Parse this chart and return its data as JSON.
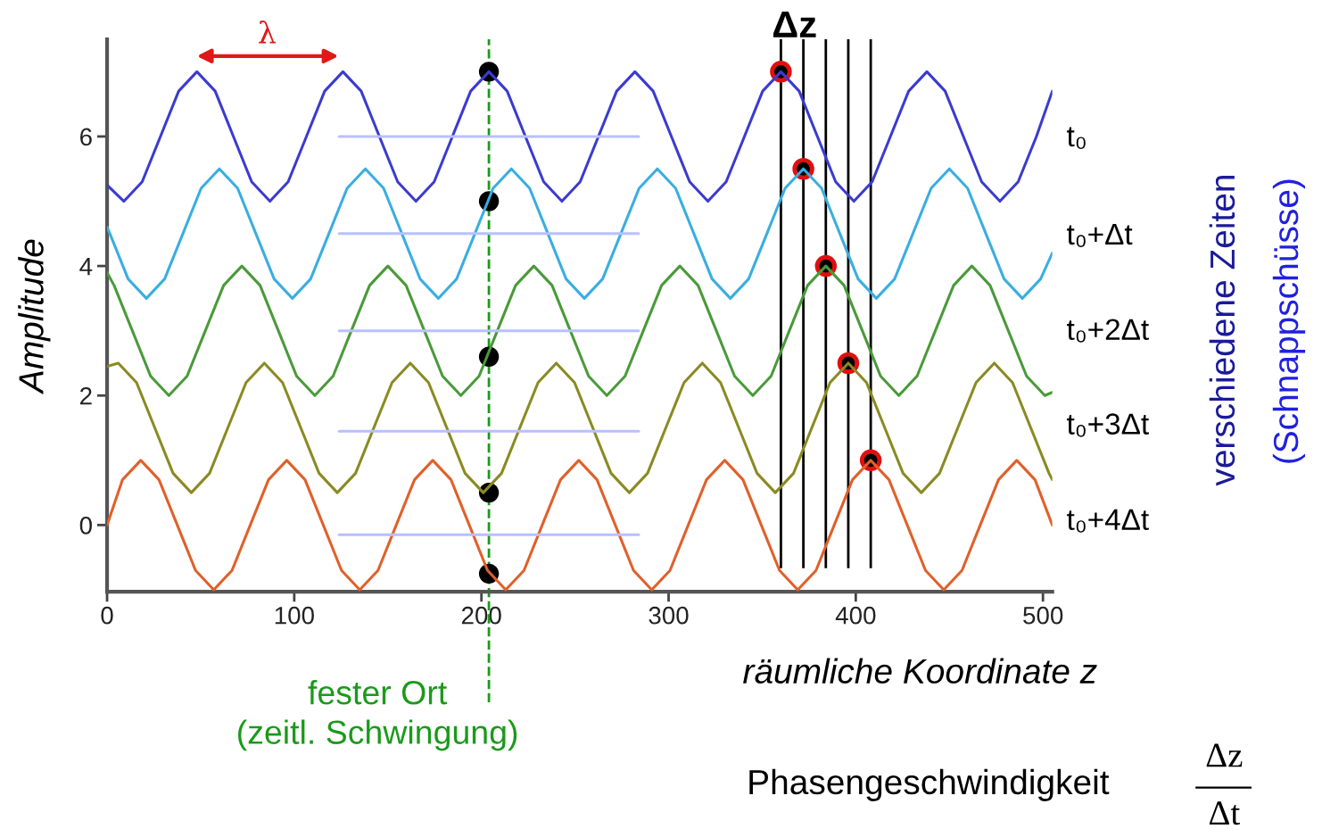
{
  "chart_data": {
    "type": "line",
    "xlabel": "räumliche Koordinate z",
    "ylabel": "Amplitude",
    "xlim": [
      0,
      505
    ],
    "ylim": [
      -1.03,
      7.5
    ],
    "xticks": [
      0,
      100,
      200,
      300,
      400,
      500
    ],
    "yticks": [
      0,
      2,
      4,
      6
    ],
    "grid": false,
    "marker": "none",
    "line_style": "solid",
    "series": [
      {
        "name": "t₀",
        "color": "#3b3bd0",
        "x": [
          0,
          9,
          18.75,
          28.5,
          38.25,
          48,
          57.75,
          67.5,
          77.25,
          87,
          96.75,
          106.5,
          116.25,
          126,
          135.75,
          145.5,
          155.25,
          165,
          174.75,
          184.5,
          194.25,
          204,
          213.75,
          223.5,
          233.25,
          243,
          252.75,
          262.5,
          272.25,
          282,
          291.75,
          301.5,
          311.25,
          321,
          330.75,
          340.5,
          350.25,
          360,
          369.75,
          379.5,
          389.25,
          399,
          408.75,
          418.5,
          428.25,
          438,
          447.75,
          457.5,
          467.25,
          477,
          486.75,
          496.5,
          505
        ],
        "values": [
          5.25,
          5,
          5.3,
          6,
          6.7,
          7,
          6.7,
          6,
          5.3,
          5,
          5.3,
          6,
          6.7,
          7,
          6.7,
          6,
          5.3,
          5,
          5.3,
          6,
          6.7,
          7,
          6.7,
          6,
          5.3,
          5,
          5.3,
          6,
          6.7,
          7,
          6.7,
          6,
          5.3,
          5,
          5.3,
          6,
          6.7,
          7,
          6.7,
          6,
          5.3,
          5,
          5.3,
          6,
          6.7,
          7,
          6.7,
          6,
          5.3,
          5,
          5.3,
          6,
          6.7
        ]
      },
      {
        "name": "t₀+Δt",
        "color": "#39aee0",
        "x": [
          0,
          1.5,
          11.25,
          21,
          30.75,
          40.5,
          50.25,
          60,
          69.75,
          79.5,
          89.25,
          99,
          108.75,
          118.5,
          128.25,
          138,
          147.75,
          157.5,
          167.25,
          177,
          186.75,
          196.5,
          206.25,
          216,
          225.75,
          235.5,
          245.25,
          255,
          264.75,
          274.5,
          284.25,
          294,
          303.75,
          313.5,
          323.25,
          333,
          342.75,
          352.5,
          362.25,
          372,
          381.75,
          391.5,
          401.25,
          411,
          420.75,
          430.5,
          440.25,
          450,
          459.75,
          469.5,
          479.25,
          489,
          498.75,
          505
        ],
        "values": [
          4.6,
          4.5,
          3.8,
          3.5,
          3.8,
          4.5,
          5.2,
          5.5,
          5.2,
          4.5,
          3.8,
          3.5,
          3.8,
          4.5,
          5.2,
          5.5,
          5.2,
          4.5,
          3.8,
          3.5,
          3.8,
          4.5,
          5.2,
          5.5,
          5.2,
          4.5,
          3.8,
          3.5,
          3.8,
          4.5,
          5.2,
          5.5,
          5.2,
          4.5,
          3.8,
          3.5,
          3.8,
          4.5,
          5.2,
          5.5,
          5.2,
          4.5,
          3.8,
          3.5,
          3.8,
          4.5,
          5.2,
          5.5,
          5.2,
          4.5,
          3.8,
          3.5,
          3.8,
          4.2
        ]
      },
      {
        "name": "t₀+2Δt",
        "color": "#4a9a3a",
        "x": [
          0,
          3.75,
          13.5,
          23.25,
          33,
          42.75,
          52.5,
          62.25,
          72,
          81.75,
          91.5,
          101.25,
          111,
          120.75,
          130.5,
          140.25,
          150,
          159.75,
          169.5,
          179.25,
          189,
          198.75,
          208.5,
          218.25,
          228,
          237.75,
          247.5,
          257.25,
          267,
          276.75,
          286.5,
          296.25,
          306,
          315.75,
          325.5,
          335.25,
          345,
          354.75,
          364.5,
          374.25,
          384,
          393.75,
          403.5,
          413.25,
          423,
          432.75,
          442.5,
          452.25,
          462,
          471.75,
          481.5,
          491.25,
          501,
          505
        ],
        "values": [
          3.9,
          3.7,
          3,
          2.3,
          2,
          2.3,
          3,
          3.7,
          4,
          3.7,
          3,
          2.3,
          2,
          2.3,
          3,
          3.7,
          4,
          3.7,
          3,
          2.3,
          2,
          2.3,
          3,
          3.7,
          4,
          3.7,
          3,
          2.3,
          2,
          2.3,
          3,
          3.7,
          4,
          3.7,
          3,
          2.3,
          2,
          2.3,
          3,
          3.7,
          4,
          3.7,
          3,
          2.3,
          2,
          2.3,
          3,
          3.7,
          4,
          3.7,
          3,
          2.3,
          2,
          2.05
        ]
      },
      {
        "name": "t₀+3Δt",
        "color": "#8a8a22",
        "x": [
          0,
          6,
          15.75,
          25.5,
          35.25,
          45,
          54.75,
          64.5,
          74.25,
          84,
          93.75,
          103.5,
          113.25,
          123,
          132.75,
          142.5,
          152.25,
          162,
          171.75,
          181.5,
          191.25,
          201,
          210.75,
          220.5,
          230.25,
          240,
          249.75,
          259.5,
          269.25,
          279,
          288.75,
          298.5,
          308.25,
          318,
          327.75,
          337.5,
          347.25,
          357,
          366.75,
          376.5,
          386.25,
          396,
          405.75,
          415.5,
          425.25,
          435,
          444.75,
          454.5,
          464.25,
          474,
          483.75,
          493.5,
          503.25,
          505
        ],
        "values": [
          2.45,
          2.5,
          2.2,
          1.5,
          0.8,
          0.5,
          0.8,
          1.5,
          2.2,
          2.5,
          2.2,
          1.5,
          0.8,
          0.5,
          0.8,
          1.5,
          2.2,
          2.5,
          2.2,
          1.5,
          0.8,
          0.5,
          0.8,
          1.5,
          2.2,
          2.5,
          2.2,
          1.5,
          0.8,
          0.5,
          0.8,
          1.5,
          2.2,
          2.5,
          2.2,
          1.5,
          0.8,
          0.5,
          0.8,
          1.5,
          2.2,
          2.5,
          2.2,
          1.5,
          0.8,
          0.5,
          0.8,
          1.5,
          2.2,
          2.5,
          2.2,
          1.5,
          0.8,
          0.7
        ]
      },
      {
        "name": "t₀+4Δt",
        "color": "#e0602a",
        "x": [
          0,
          8.25,
          18,
          27.75,
          37.5,
          47.25,
          57,
          66.75,
          76.5,
          86.25,
          96,
          105.75,
          115.5,
          125.25,
          135,
          144.75,
          154.5,
          164.25,
          174,
          183.75,
          193.5,
          203.25,
          213,
          222.75,
          232.5,
          242.25,
          252,
          261.75,
          271.5,
          281.25,
          291,
          300.75,
          310.5,
          320.25,
          330,
          339.75,
          349.5,
          359.25,
          369,
          378.75,
          388.5,
          398.25,
          408,
          417.75,
          427.5,
          437.25,
          447,
          456.75,
          466.5,
          476.25,
          486,
          495.75,
          505
        ],
        "values": [
          0,
          0.7,
          1,
          0.7,
          0,
          -0.7,
          -1,
          -0.7,
          0,
          0.7,
          1,
          0.7,
          0,
          -0.7,
          -1,
          -0.7,
          0,
          0.7,
          1,
          0.7,
          0,
          -0.7,
          -1,
          -0.7,
          0,
          0.7,
          1,
          0.7,
          0,
          -0.7,
          -1,
          -0.7,
          0,
          0.7,
          1,
          0.7,
          0,
          -0.7,
          -1,
          -0.7,
          0,
          0.7,
          1,
          0.7,
          0,
          -0.7,
          -1,
          -0.7,
          0,
          0.7,
          1,
          0.7,
          0
        ]
      },
      {
        "color": "#b8c0ff",
        "x": [
          124,
          284
        ],
        "values": [
          6,
          6
        ]
      },
      {
        "color": "#b8c0ff",
        "x": [
          124,
          284
        ],
        "values": [
          4.5,
          4.5
        ]
      },
      {
        "color": "#b8c0ff",
        "x": [
          124,
          284
        ],
        "values": [
          3,
          3
        ]
      },
      {
        "color": "#b8c0ff",
        "x": [
          124,
          284
        ],
        "values": [
          1.45,
          1.45
        ]
      },
      {
        "color": "#b8c0ff",
        "x": [
          124,
          284
        ],
        "values": [
          -0.15,
          -0.15
        ]
      },
      {
        "type": "scatter",
        "color": "#000000",
        "marker": "circle",
        "x": [
          204,
          204,
          204,
          204,
          204
        ],
        "values": [
          7,
          5,
          2.6,
          0.5,
          -0.75
        ]
      },
      {
        "type": "scatter",
        "color": "#e01010",
        "marker": "circle",
        "x": [
          360,
          372,
          384,
          396,
          408
        ],
        "values": [
          7,
          5.5,
          4,
          2.5,
          1
        ]
      }
    ],
    "ref_lines": [
      {
        "axis": "x",
        "value": 204,
        "label": "fester Ort\n(zeitl. Schwingung)",
        "color": "#1a9a1a",
        "line_style": "dashed"
      },
      {
        "axis": "x",
        "value": 360,
        "color": "#000000"
      },
      {
        "axis": "x",
        "value": 372,
        "color": "#000000"
      },
      {
        "axis": "x",
        "value": 384,
        "color": "#000000"
      },
      {
        "axis": "x",
        "value": 396,
        "color": "#000000"
      },
      {
        "axis": "x",
        "value": 408,
        "color": "#000000"
      }
    ],
    "annotations": [
      "Δz",
      "λ",
      "verschiedene Zeiten",
      "(Schnappschüsse)",
      "Phasengeschwindigkeit",
      "Δz",
      "Δt"
    ]
  }
}
